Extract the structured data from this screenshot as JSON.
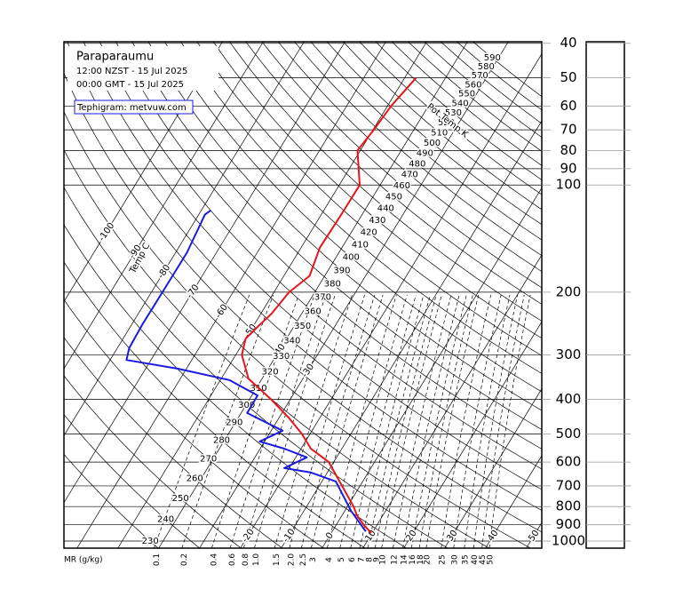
{
  "chart_data": {
    "type": "tephigram",
    "title": "Paraparaumu",
    "subtitle": [
      "12:00 NZST - 15 Jul 2025",
      "00:00 GMT - 15 Jul 2025"
    ],
    "source": "Tephigram: metvuw.com",
    "xlim": [
      -63.2,
      53.8
    ],
    "ylim": [
      1047,
      39.6
    ],
    "log_y": true,
    "yticks": [
      1000,
      900,
      800,
      700,
      600,
      500,
      400,
      300,
      200,
      100,
      90,
      80,
      70,
      60,
      50,
      40
    ],
    "isotherms": {
      "label": "Temp C",
      "values": [
        -100,
        -90,
        -80,
        -70,
        -60,
        -50,
        -40,
        -30,
        -20,
        -10,
        0,
        10,
        20,
        30,
        40,
        50
      ]
    },
    "isentropes": {
      "label": "Pot Temp K",
      "values": [
        230,
        240,
        250,
        260,
        270,
        280,
        290,
        300,
        310,
        320,
        330,
        340,
        350,
        360,
        370,
        380,
        390,
        400,
        410,
        420,
        430,
        440,
        450,
        460,
        470,
        480,
        490,
        500,
        510,
        520,
        530,
        540,
        550,
        560,
        570,
        580,
        590
      ]
    },
    "mixing_ratio": {
      "label": "MR (g/kg)",
      "top": 200,
      "values": [
        0.1,
        0.2,
        0.4,
        0.6,
        0.8,
        {
          "value": 1,
          "label": "1.0"
        },
        1.5,
        {
          "value": 2,
          "label": "2.0"
        },
        2.5,
        3,
        4,
        5,
        6,
        7,
        8,
        9,
        10,
        12,
        14,
        16,
        18,
        20,
        25,
        30,
        35,
        40,
        45,
        50
      ]
    },
    "series": [
      {
        "color": "#e8141b",
        "pressure": [
          950,
          900,
          850,
          800,
          700,
          600,
          550,
          500,
          450,
          400,
          350,
          300,
          270,
          250,
          230,
          200,
          180,
          150,
          120,
          100,
          80,
          70,
          60,
          50
        ],
        "values": [
          9.8,
          6.7,
          3.8,
          1.5,
          -4.4,
          -11.2,
          -17.6,
          -22,
          -27.7,
          -34.7,
          -43.3,
          -48.5,
          -50,
          -48.8,
          -47.4,
          -46.3,
          -43.7,
          -45.4,
          -45.1,
          -45,
          -50.7,
          -49.8,
          -49.1,
          -47.2
        ]
      },
      {
        "color": "#1a1adf",
        "pressure": [
          940,
          822,
          680,
          642,
          624,
          582,
          550,
          525,
          490,
          437,
          390,
          353,
          328,
          310,
          287,
          246,
          195,
          155,
          121,
          118
        ],
        "values": [
          8.2,
          1.5,
          -6.6,
          -14,
          -21.2,
          -17.3,
          -24.1,
          -31.2,
          -27.2,
          -38.5,
          -38.6,
          -47.8,
          -62.1,
          -76,
          -77.1,
          -77.4,
          -77.3,
          -77.2,
          -78.5,
          -77.7
        ]
      }
    ]
  }
}
